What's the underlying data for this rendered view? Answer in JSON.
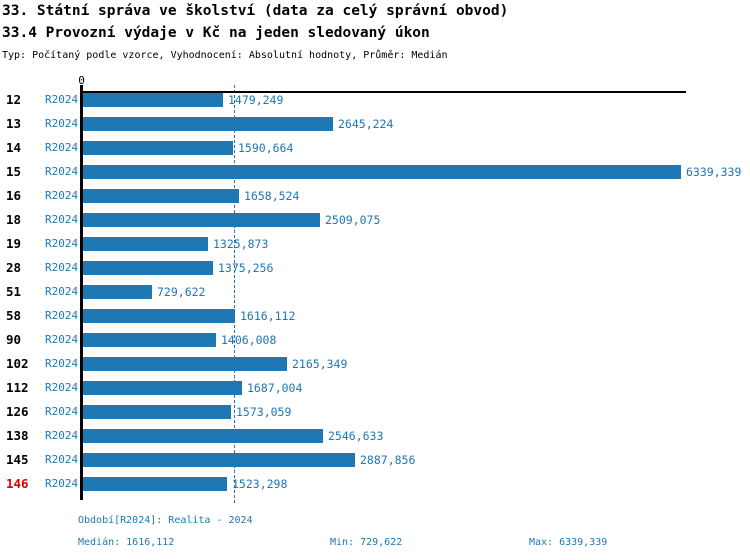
{
  "header": {
    "title_line1": "33. Státní správa ve školství (data za celý správní obvod)",
    "title_line2": "33.4 Provozní výdaje v Kč na jeden sledovaný úkon",
    "meta": "Typ: Počítaný podle vzorce, Vyhodnocení: Absolutní hodnoty, Průměr: Medián"
  },
  "chart_data": {
    "type": "bar",
    "orientation": "horizontal",
    "period_label": "R2024",
    "axis_zero_label": "0",
    "xlim": [
      0,
      6339.339
    ],
    "median_value": 1616.112,
    "bar_color": "#1f77b4",
    "text_color": "#1f77b4",
    "highlight_color": "#e00000",
    "grid": "median-dashed-line-only",
    "legend_position": "none",
    "rows": [
      {
        "id": "12",
        "period": "R2024",
        "value": 1479.249,
        "label": "1479,249",
        "highlight": false
      },
      {
        "id": "13",
        "period": "R2024",
        "value": 2645.224,
        "label": "2645,224",
        "highlight": false
      },
      {
        "id": "14",
        "period": "R2024",
        "value": 1590.664,
        "label": "1590,664",
        "highlight": false
      },
      {
        "id": "15",
        "period": "R2024",
        "value": 6339.339,
        "label": "6339,339",
        "highlight": false
      },
      {
        "id": "16",
        "period": "R2024",
        "value": 1658.524,
        "label": "1658,524",
        "highlight": false
      },
      {
        "id": "18",
        "period": "R2024",
        "value": 2509.075,
        "label": "2509,075",
        "highlight": false
      },
      {
        "id": "19",
        "period": "R2024",
        "value": 1325.873,
        "label": "1325,873",
        "highlight": false
      },
      {
        "id": "28",
        "period": "R2024",
        "value": 1375.256,
        "label": "1375,256",
        "highlight": false
      },
      {
        "id": "51",
        "period": "R2024",
        "value": 729.622,
        "label": "729,622",
        "highlight": false
      },
      {
        "id": "58",
        "period": "R2024",
        "value": 1616.112,
        "label": "1616,112",
        "highlight": false
      },
      {
        "id": "90",
        "period": "R2024",
        "value": 1406.008,
        "label": "1406,008",
        "highlight": false
      },
      {
        "id": "102",
        "period": "R2024",
        "value": 2165.349,
        "label": "2165,349",
        "highlight": false
      },
      {
        "id": "112",
        "period": "R2024",
        "value": 1687.004,
        "label": "1687,004",
        "highlight": false
      },
      {
        "id": "126",
        "period": "R2024",
        "value": 1573.059,
        "label": "1573,059",
        "highlight": false
      },
      {
        "id": "138",
        "period": "R2024",
        "value": 2546.633,
        "label": "2546,633",
        "highlight": false
      },
      {
        "id": "145",
        "period": "R2024",
        "value": 2887.856,
        "label": "2887,856",
        "highlight": false
      },
      {
        "id": "146",
        "period": "R2024",
        "value": 1523.298,
        "label": "1523,298",
        "highlight": true
      }
    ]
  },
  "footer": {
    "period_line": "Období[R2024]: Realita - 2024",
    "median": "Medián: 1616,112",
    "min": "Min: 729,622",
    "max": "Max: 6339,339"
  }
}
